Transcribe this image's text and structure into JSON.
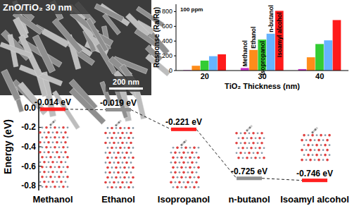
{
  "image": {
    "label": "ZnO/TiO₂ 30 nm",
    "scale_bar": "200 nm"
  },
  "chart_data": [
    {
      "type": "bar",
      "title": "100 ppm",
      "x_label": "TiO₂ Thickness (nm)",
      "y_label": "Response (Ra/Rg)",
      "categories": [
        "20",
        "30",
        "40"
      ],
      "series": [
        {
          "name": "Methanol",
          "color": "#cc33cc",
          "values": [
            5,
            35,
            20
          ]
        },
        {
          "name": "Ethanol",
          "color": "#ff8c1a",
          "values": [
            65,
            280,
            180
          ]
        },
        {
          "name": "Isopropanol",
          "color": "#33cc33",
          "values": [
            135,
            420,
            360
          ]
        },
        {
          "name": "n-butanol",
          "color": "#66b3ff",
          "values": [
            195,
            500,
            410
          ]
        },
        {
          "name": "Isoamyl alcohol",
          "color": "#ff1a1a",
          "values": [
            220,
            810,
            685
          ]
        }
      ],
      "ylim": [
        0,
        900
      ],
      "yticks": [
        0,
        200,
        400,
        600,
        800
      ]
    },
    {
      "type": "level",
      "y_label": "Energy (eV)",
      "categories": [
        "Methanol",
        "Ethanol",
        "Isopropanol",
        "n-butanol",
        "Isoamyl alcohol"
      ],
      "values": [
        -0.014,
        -0.019,
        -0.221,
        -0.725,
        -0.746
      ],
      "value_labels": [
        "-0.014 eV",
        "-0.019 eV",
        "-0.221 eV",
        "-0.725 eV",
        "-0.746 eV"
      ],
      "data_labels": true,
      "colors": [
        "#ff2020",
        "#909090",
        "#ff2020",
        "#909090",
        "#ff2020"
      ],
      "line_style": "dashed",
      "ylim": [
        -0.85,
        0.05
      ],
      "yticks": [
        {
          "value": 0,
          "label": "0.0"
        },
        -0.2,
        -0.4,
        -0.6,
        -0.8
      ]
    }
  ]
}
